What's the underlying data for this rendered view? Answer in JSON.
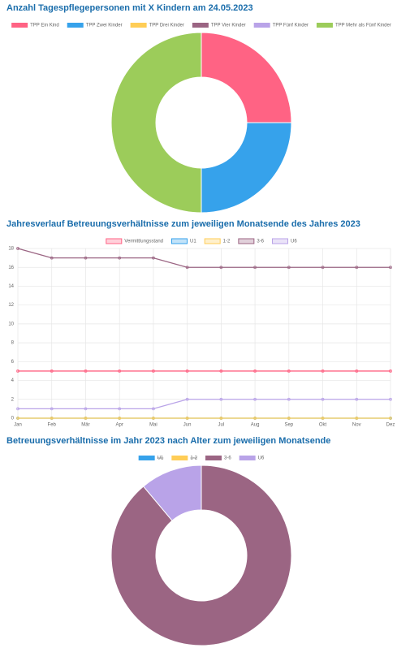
{
  "chart_data": [
    {
      "type": "doughnut",
      "title": "Anzahl Tagespflegepersonen mit X Kindern am 24.05.2023",
      "categories": [
        "TPP Ein Kind",
        "TPP Zwei Kinder",
        "TPP Drei Kinder",
        "TPP Vier Kinder",
        "TPP Fünf Kinder",
        "TPP Mehr als Fünf Kinder"
      ],
      "values": [
        1,
        1,
        0,
        0,
        0,
        2
      ],
      "colors": [
        "#ff6384",
        "#36a2eb",
        "#ffcd56",
        "#9b6583",
        "#b9a3e8",
        "#9ccc5a"
      ],
      "hidden": [
        false,
        false,
        false,
        false,
        false,
        false
      ]
    },
    {
      "type": "line",
      "title": "Jahresverlauf Betreuungsverhältnisse zum jeweiligen Monatsende des Jahres 2023",
      "categories": [
        "Jan",
        "Feb",
        "Mär",
        "Apr",
        "Mai",
        "Jun",
        "Jul",
        "Aug",
        "Sep",
        "Okt",
        "Nov",
        "Dez"
      ],
      "ylim": [
        0,
        18
      ],
      "yticks": [
        0,
        2,
        4,
        6,
        8,
        10,
        12,
        14,
        16,
        18
      ],
      "grid": true,
      "series": [
        {
          "name": "Vermittlungsstand",
          "color": "#ff6384",
          "values": [
            5,
            5,
            5,
            5,
            5,
            5,
            5,
            5,
            5,
            5,
            5,
            5
          ]
        },
        {
          "name": "U1",
          "color": "#36a2eb",
          "values": [
            0,
            0,
            0,
            0,
            0,
            0,
            0,
            0,
            0,
            0,
            0,
            0
          ]
        },
        {
          "name": "1-2",
          "color": "#ffcd56",
          "values": [
            0,
            0,
            0,
            0,
            0,
            0,
            0,
            0,
            0,
            0,
            0,
            0
          ]
        },
        {
          "name": "3-6",
          "color": "#9b6583",
          "values": [
            18,
            17,
            17,
            17,
            17,
            16,
            16,
            16,
            16,
            16,
            16,
            16
          ]
        },
        {
          "name": "U6",
          "color": "#b9a3e8",
          "values": [
            1,
            1,
            1,
            1,
            1,
            2,
            2,
            2,
            2,
            2,
            2,
            2
          ]
        }
      ]
    },
    {
      "type": "doughnut",
      "title": "Betreuungsverhältnisse im Jahr 2023 nach Alter zum jeweiligen Monatsende",
      "categories": [
        "U1",
        "1-2",
        "3-6",
        "U6"
      ],
      "values": [
        0,
        0,
        16,
        2
      ],
      "colors": [
        "#36a2eb",
        "#ffcd56",
        "#9b6583",
        "#b9a3e8"
      ],
      "hidden": [
        true,
        true,
        false,
        false
      ]
    }
  ]
}
